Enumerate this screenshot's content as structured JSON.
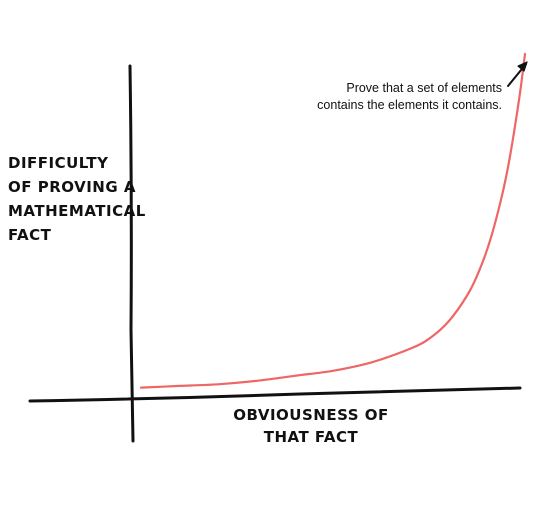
{
  "chart_data": {
    "type": "line",
    "title": "",
    "ylabel_lines": [
      "DIFFICULTY",
      "OF PROVING A",
      "MATHEMATICAL",
      "FACT"
    ],
    "xlabel_lines": [
      "OBVIOUSNESS OF",
      "THAT FACT"
    ],
    "axis_ticks": "none",
    "grid": false,
    "legend": "none",
    "series": [
      {
        "color": "#ee6666",
        "x": [
          0,
          0.1,
          0.2,
          0.3,
          0.4,
          0.5,
          0.6,
          0.7,
          0.75,
          0.8,
          0.85,
          0.88,
          0.91,
          0.94,
          0.96,
          0.98,
          0.99,
          1.0
        ],
        "y": [
          0.01,
          0.015,
          0.02,
          0.03,
          0.045,
          0.06,
          0.085,
          0.125,
          0.155,
          0.205,
          0.285,
          0.355,
          0.45,
          0.58,
          0.69,
          0.83,
          0.91,
          1.0
        ]
      }
    ],
    "annotation": {
      "lines": [
        "Prove that a set of elements",
        "contains the elements it contains."
      ],
      "points_to": "end of curve"
    }
  }
}
